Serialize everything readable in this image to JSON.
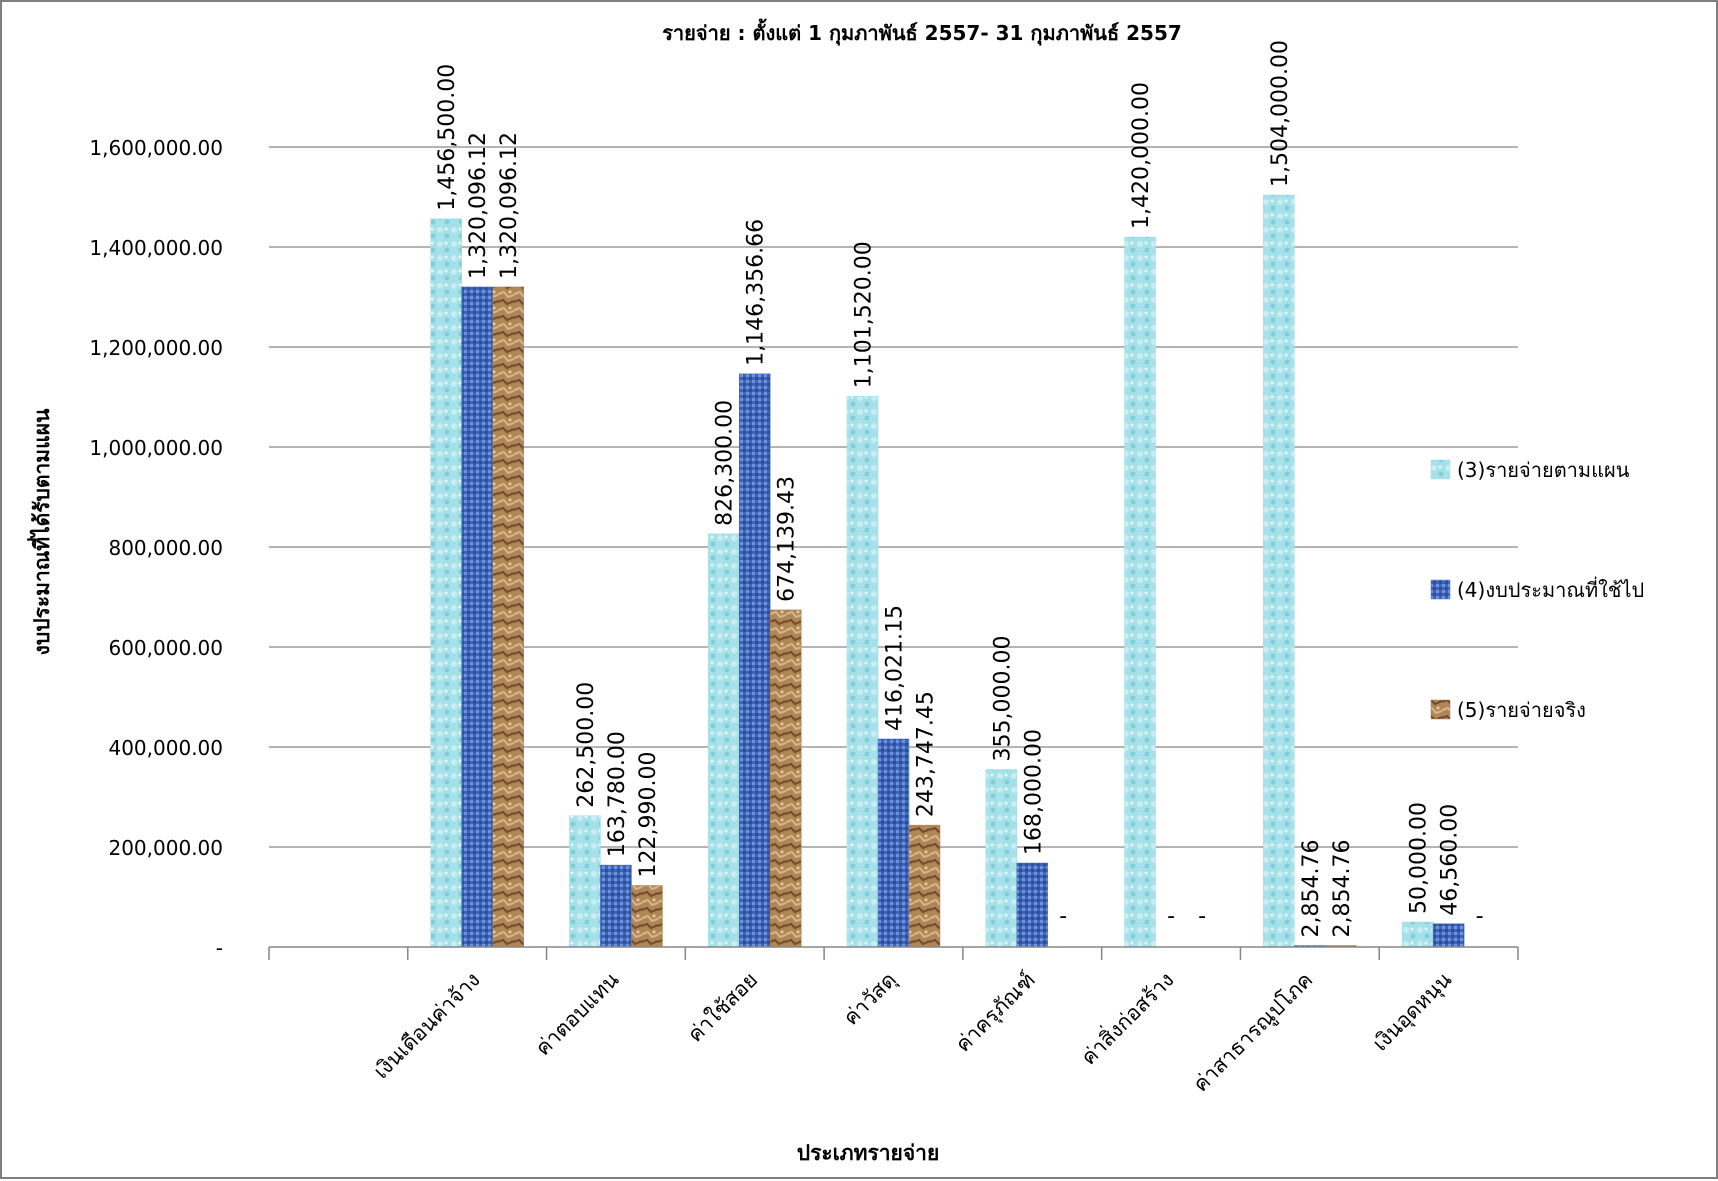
{
  "chart_data": {
    "type": "bar",
    "title": "รายจ่าย : ตั้งแต่ 1 กุมภาพันธ์ 2557- 31 กุมภาพันธ์ 2557",
    "xlabel": "ประเภทรายจ่าย",
    "ylabel": "งบประมาณที่ได้รับตามแผน",
    "ylim": [
      0,
      1600000
    ],
    "y_ticks": [
      0,
      200000,
      400000,
      600000,
      800000,
      1000000,
      1200000,
      1400000,
      1600000
    ],
    "y_tick_labels": [
      "-",
      "200,000.00",
      "400,000.00",
      "600,000.00",
      "800,000.00",
      "1,000,000.00",
      "1,200,000.00",
      "1,400,000.00",
      "1,600,000.00"
    ],
    "grid": true,
    "legend_position": "right",
    "categories": [
      "",
      "เงินเดือนค่าจ้าง",
      "ค่าตอบแทน",
      "ค่าใช้สอย",
      "ค่าวัสดุ",
      "ค่าครุภัณฑ์",
      "ค่าสิ่งก่อสร้าง",
      "ค่าสาธารณูปโภค",
      "เงินอุดหนุน"
    ],
    "series": [
      {
        "name": "(3)รายจ่ายตามแผน",
        "color": "#9fdde6",
        "values": [
          null,
          1456500,
          262500,
          826300,
          1101520,
          355000,
          1420000,
          1504000,
          50000
        ],
        "labels": [
          "",
          "1,456,500.00",
          "262,500.00",
          "826,300.00",
          "1,101,520.00",
          "355,000.00",
          "1,420,000.00",
          "1,504,000.00",
          "50,000.00"
        ]
      },
      {
        "name": "(4)งบประมาณที่ใช้ไป",
        "color": "#4a72c4",
        "values": [
          null,
          1320096.12,
          163780,
          1146356.66,
          416021.15,
          168000,
          0,
          2854.76,
          46560
        ],
        "labels": [
          "",
          "1,320,096.12",
          "163,780.00",
          "1,146,356.66",
          "416,021.15",
          "168,000.00",
          "-",
          "2,854.76",
          "46,560.00"
        ]
      },
      {
        "name": "(5)รายจ่ายจริง",
        "color": "#a87c52",
        "values": [
          null,
          1320096.12,
          122990,
          674139.43,
          243747.45,
          0,
          0,
          2854.76,
          0
        ],
        "labels": [
          "",
          "1,320,096.12",
          "122,990.00",
          "674,139.43",
          "243,747.45",
          "-",
          "-",
          "2,854.76",
          "-"
        ]
      }
    ]
  }
}
